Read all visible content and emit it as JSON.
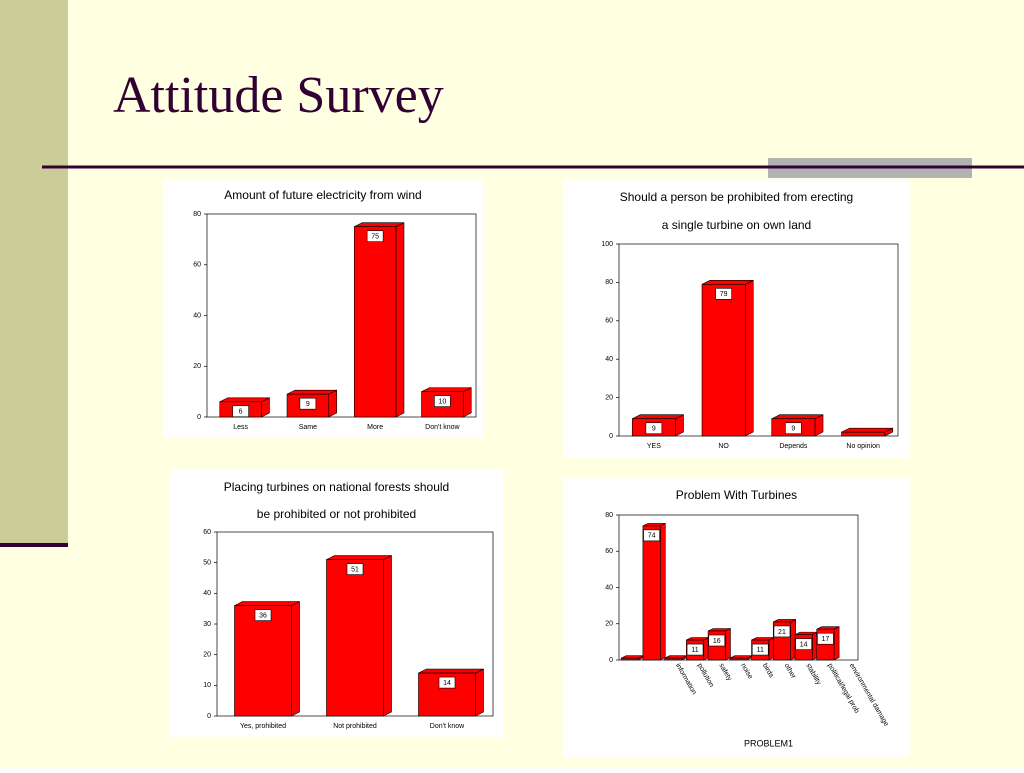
{
  "slide": {
    "title": "Attitude Survey"
  },
  "chart_data": [
    {
      "type": "bar",
      "title": [
        "Amount of future electricity from wind"
      ],
      "categories": [
        "Less",
        "Same",
        "More",
        "Don't know"
      ],
      "values": [
        6,
        9,
        75,
        10
      ],
      "color": "#ff0000",
      "ylim": [
        0,
        80
      ],
      "yticks": [
        0,
        20,
        40,
        60,
        80
      ]
    },
    {
      "type": "bar",
      "title": [
        "Should a person be prohibited from erecting",
        "a single turbine on own land"
      ],
      "categories": [
        "YES",
        "NO",
        "Depends",
        "No opinion"
      ],
      "values": [
        9,
        79,
        9,
        2
      ],
      "color": "#ff0000",
      "ylim": [
        0,
        100
      ],
      "yticks": [
        0,
        20,
        40,
        60,
        80,
        100
      ]
    },
    {
      "type": "bar",
      "title": [
        "Placing turbines on national forests should",
        "be prohibited or not prohibited"
      ],
      "categories": [
        "Yes, prohibited",
        "Not prohibited",
        "Don't know"
      ],
      "values": [
        36,
        51,
        14
      ],
      "color": "#ff0000",
      "ylim": [
        0,
        60
      ],
      "yticks": [
        0,
        10,
        20,
        30,
        40,
        50,
        60
      ]
    },
    {
      "type": "bar",
      "title": [
        "Problem With Turbines"
      ],
      "xlabel": "PROBLEM1",
      "categories": [
        null,
        null,
        "information",
        "pollution",
        "safety",
        "noise",
        "birds",
        "other",
        "stability",
        "political/legal prob",
        "environmental damage"
      ],
      "values": [
        1,
        74,
        1,
        11,
        16,
        1,
        11,
        21,
        14,
        17,
        null
      ],
      "color": "#ff0000",
      "ylim": [
        0,
        80
      ],
      "yticks": [
        0,
        20,
        40,
        60,
        80
      ]
    }
  ]
}
